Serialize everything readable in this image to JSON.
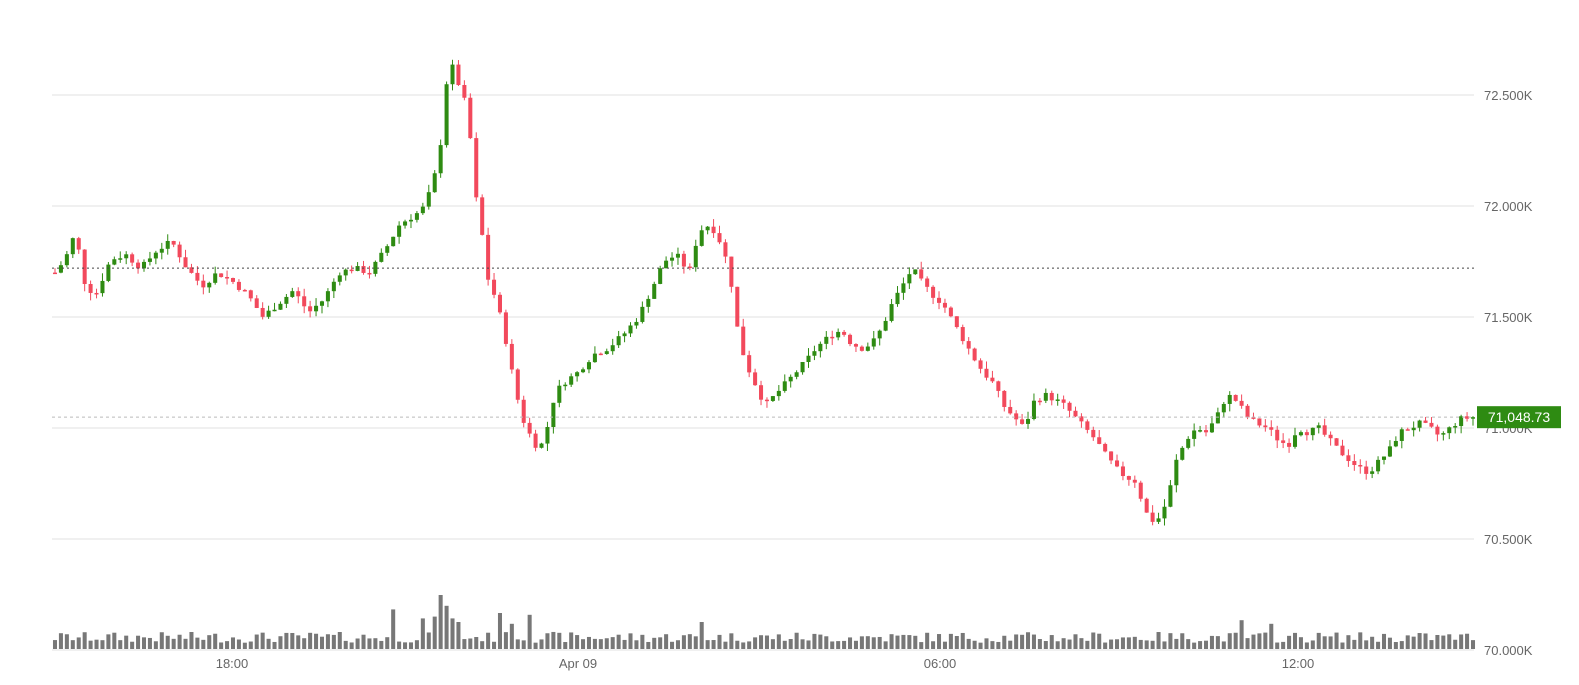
{
  "chart_data": {
    "type": "candlestick",
    "x_axis_ticks": [
      "18:00",
      "Apr 09",
      "06:00",
      "12:00"
    ],
    "y_axis_ticks": [
      "70.000K",
      "70.500K",
      "71.000K",
      "71.500K",
      "72.000K",
      "72.500K"
    ],
    "y_axis_tick_values": [
      70000,
      70500,
      71000,
      71500,
      72000,
      72500
    ],
    "ylim": [
      70000,
      72900
    ],
    "grid": true,
    "reference_price": 71720,
    "current_price": 71048.73,
    "current_price_label": "71,048.73",
    "candle_count": 240,
    "price_path": [
      [
        0,
        71700
      ],
      [
        4,
        71760
      ],
      [
        8,
        71880
      ],
      [
        12,
        71640
      ],
      [
        16,
        71600
      ],
      [
        22,
        71760
      ],
      [
        28,
        71780
      ],
      [
        34,
        71720
      ],
      [
        40,
        71800
      ],
      [
        46,
        71840
      ],
      [
        52,
        71720
      ],
      [
        58,
        71640
      ],
      [
        64,
        71700
      ],
      [
        70,
        71660
      ],
      [
        76,
        71600
      ],
      [
        82,
        71500
      ],
      [
        88,
        71560
      ],
      [
        94,
        71620
      ],
      [
        100,
        71520
      ],
      [
        106,
        71580
      ],
      [
        112,
        71700
      ],
      [
        118,
        71720
      ],
      [
        124,
        71700
      ],
      [
        130,
        71800
      ],
      [
        136,
        71920
      ],
      [
        142,
        71960
      ],
      [
        146,
        72000
      ],
      [
        150,
        72150
      ],
      [
        153,
        72350
      ],
      [
        155,
        72650
      ],
      [
        157,
        72620
      ],
      [
        160,
        72520
      ],
      [
        163,
        72420
      ],
      [
        165,
        72100
      ],
      [
        168,
        71900
      ],
      [
        171,
        71650
      ],
      [
        174,
        71580
      ],
      [
        178,
        71380
      ],
      [
        181,
        71200
      ],
      [
        184,
        71050
      ],
      [
        188,
        70950
      ],
      [
        191,
        70900
      ],
      [
        194,
        71000
      ],
      [
        197,
        71150
      ],
      [
        200,
        71200
      ],
      [
        206,
        71250
      ],
      [
        212,
        71330
      ],
      [
        218,
        71360
      ],
      [
        224,
        71420
      ],
      [
        230,
        71500
      ],
      [
        235,
        71620
      ],
      [
        240,
        71750
      ],
      [
        245,
        71780
      ],
      [
        250,
        71700
      ],
      [
        253,
        71850
      ],
      [
        256,
        71920
      ],
      [
        260,
        71890
      ],
      [
        263,
        71820
      ],
      [
        266,
        71700
      ],
      [
        269,
        71450
      ],
      [
        272,
        71300
      ],
      [
        276,
        71200
      ],
      [
        280,
        71100
      ],
      [
        284,
        71150
      ],
      [
        288,
        71200
      ],
      [
        292,
        71250
      ],
      [
        296,
        71300
      ],
      [
        300,
        71360
      ],
      [
        306,
        71420
      ],
      [
        310,
        71440
      ],
      [
        314,
        71380
      ],
      [
        318,
        71360
      ],
      [
        322,
        71380
      ],
      [
        326,
        71450
      ],
      [
        330,
        71560
      ],
      [
        334,
        71640
      ],
      [
        338,
        71720
      ],
      [
        342,
        71650
      ],
      [
        346,
        71600
      ],
      [
        350,
        71560
      ],
      [
        354,
        71480
      ],
      [
        358,
        71400
      ],
      [
        362,
        71320
      ],
      [
        366,
        71250
      ],
      [
        370,
        71200
      ],
      [
        374,
        71100
      ],
      [
        378,
        71050
      ],
      [
        382,
        71000
      ],
      [
        386,
        71120
      ],
      [
        390,
        71150
      ],
      [
        394,
        71130
      ],
      [
        398,
        71100
      ],
      [
        402,
        71050
      ],
      [
        406,
        71000
      ],
      [
        410,
        70950
      ],
      [
        414,
        70880
      ],
      [
        418,
        70820
      ],
      [
        422,
        70780
      ],
      [
        426,
        70760
      ],
      [
        430,
        70620
      ],
      [
        433,
        70580
      ],
      [
        436,
        70600
      ],
      [
        439,
        70700
      ],
      [
        442,
        70850
      ],
      [
        446,
        70950
      ],
      [
        450,
        71000
      ],
      [
        454,
        70980
      ],
      [
        458,
        71050
      ],
      [
        462,
        71150
      ],
      [
        466,
        71120
      ],
      [
        470,
        71050
      ],
      [
        474,
        71020
      ],
      [
        478,
        71000
      ],
      [
        482,
        70950
      ],
      [
        486,
        70920
      ],
      [
        490,
        71000
      ],
      [
        494,
        70980
      ],
      [
        498,
        71000
      ],
      [
        502,
        70950
      ],
      [
        506,
        70900
      ],
      [
        510,
        70860
      ],
      [
        514,
        70820
      ],
      [
        518,
        70800
      ],
      [
        522,
        70850
      ],
      [
        526,
        70900
      ],
      [
        530,
        70980
      ],
      [
        534,
        71000
      ],
      [
        538,
        71020
      ],
      [
        542,
        71000
      ],
      [
        546,
        70960
      ],
      [
        550,
        71000
      ],
      [
        554,
        71040
      ],
      [
        559,
        71049
      ]
    ],
    "volume_profile": {
      "baseline_ratio": 0.35,
      "spikes": [
        {
          "index": 133,
          "ratio": 2.2
        },
        {
          "index": 146,
          "ratio": 1.7
        },
        {
          "index": 150,
          "ratio": 1.8
        },
        {
          "index": 152,
          "ratio": 3.0
        },
        {
          "index": 154,
          "ratio": 2.4
        },
        {
          "index": 156,
          "ratio": 1.7
        },
        {
          "index": 160,
          "ratio": 1.5
        },
        {
          "index": 176,
          "ratio": 2.0
        },
        {
          "index": 180,
          "ratio": 1.4
        },
        {
          "index": 186,
          "ratio": 1.9
        },
        {
          "index": 254,
          "ratio": 1.5
        },
        {
          "index": 467,
          "ratio": 1.6
        },
        {
          "index": 480,
          "ratio": 1.4
        }
      ]
    },
    "colors": {
      "up": "#2e8b12",
      "down": "#f2495c",
      "volume": "#777777",
      "grid": "#e0e0e0",
      "reference_line": "#444444",
      "current_line": "#bbbbbb",
      "price_tag": "#2e8b12"
    }
  }
}
